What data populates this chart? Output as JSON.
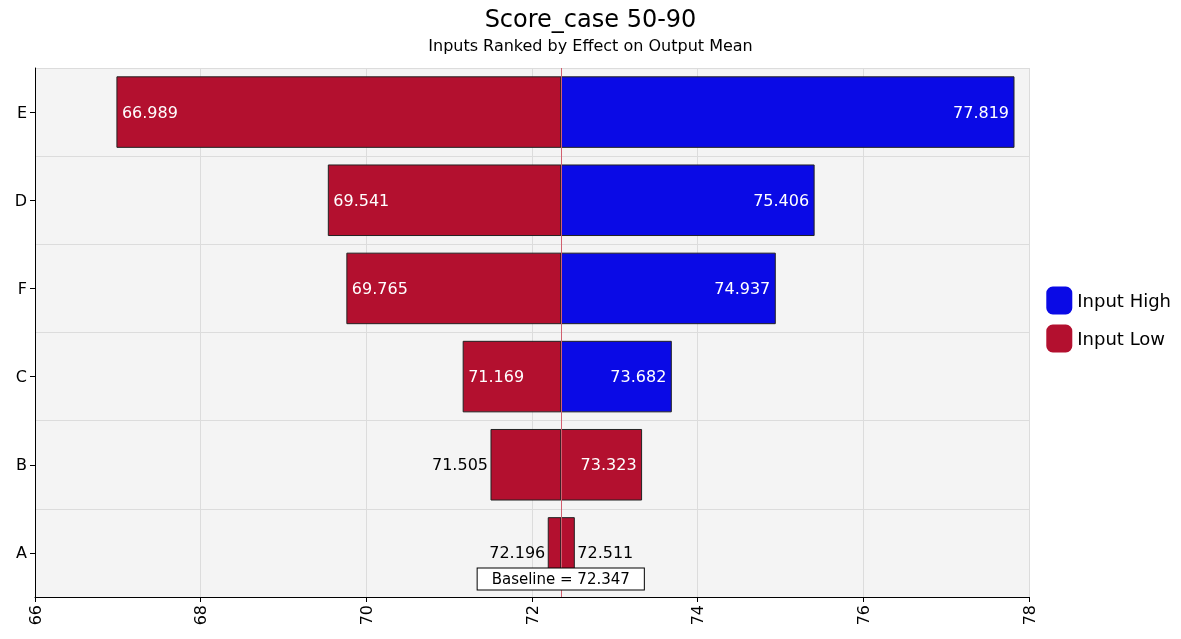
{
  "chart_data": {
    "type": "bar",
    "orientation": "horizontal",
    "title": "Score_case 50-90",
    "subtitle": "Inputs Ranked by Effect on Output Mean",
    "categories": [
      "E",
      "D",
      "F",
      "C",
      "B",
      "A"
    ],
    "series": [
      {
        "name": "Input High",
        "color": "#0a0ae6",
        "colors": [
          "#0a0ae6",
          "#0a0ae6",
          "#0a0ae6",
          "#0a0ae6",
          "#b3102f",
          "#b3102f"
        ],
        "base": [
          72.347,
          72.347,
          72.347,
          72.347,
          72.347,
          72.347
        ],
        "values": [
          5.472,
          3.059,
          2.59,
          1.335,
          0.976,
          0.164
        ],
        "value_labels": [
          "77.819",
          "75.406",
          "74.937",
          "73.682",
          "73.323",
          "72.511"
        ]
      },
      {
        "name": "Input Low",
        "color": "#b3102f",
        "base": [
          72.347,
          72.347,
          72.347,
          72.347,
          72.347,
          72.347
        ],
        "values": [
          -5.358,
          -2.806,
          -2.582,
          -1.178,
          -0.842,
          -0.151
        ],
        "value_labels": [
          "66.989",
          "69.541",
          "69.765",
          "71.169",
          "71.505",
          "72.196"
        ]
      }
    ],
    "xlim": [
      66,
      78
    ],
    "xticks": [
      66,
      68,
      70,
      72,
      74,
      76,
      78
    ],
    "ref_lines": [
      {
        "axis": "x",
        "value": 72.347,
        "label": "Baseline = 72.347",
        "color": "#d06070"
      }
    ],
    "grid": true,
    "legend": "right"
  }
}
